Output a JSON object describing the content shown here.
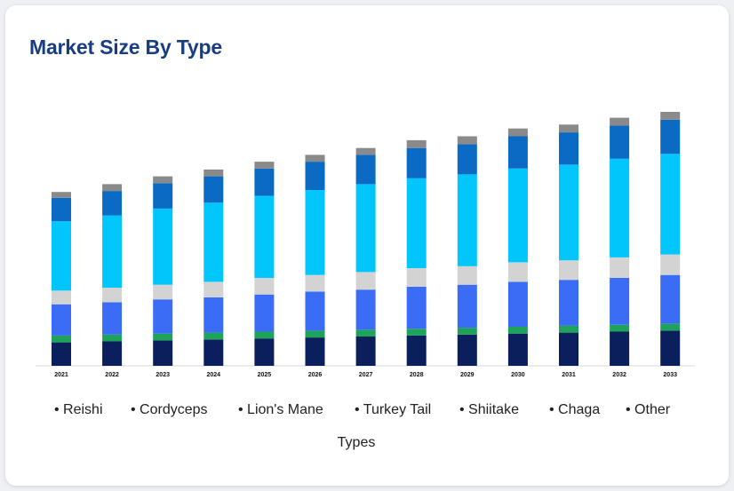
{
  "card": {
    "title": "Market Size By Type"
  },
  "chart_data": {
    "type": "bar",
    "stacked": true,
    "title": "Market Size By Type",
    "xlabel": "Types",
    "ylabel": "",
    "y_axis_labels_shown": false,
    "grid": false,
    "legend_position": "bottom",
    "categories": [
      "2021",
      "2022",
      "2023",
      "2024",
      "2025",
      "2026",
      "2027",
      "2028",
      "2029",
      "2030",
      "2031",
      "2032",
      "2033"
    ],
    "series": [
      {
        "name": "Reishi",
        "color": "#0a1f5c",
        "values": [
          24,
          25,
          26,
          27,
          28,
          29,
          30,
          31,
          32,
          33,
          34,
          35,
          36
        ]
      },
      {
        "name": "Cordyceps",
        "color": "#1ea35a",
        "values": [
          7,
          7,
          7,
          7,
          7,
          7,
          7,
          7,
          7,
          7,
          7,
          7,
          7
        ]
      },
      {
        "name": "Lion's Mane",
        "color": "#3b6cf5",
        "values": [
          32,
          33,
          35,
          36,
          38,
          40,
          41,
          43,
          44,
          46,
          47,
          48,
          50
        ]
      },
      {
        "name": "Turkey Tail",
        "color": "#d3d3d3",
        "values": [
          14,
          15,
          15,
          16,
          17,
          17,
          18,
          19,
          19,
          20,
          20,
          21,
          21
        ]
      },
      {
        "name": "Shiitake",
        "color": "#00c6fb",
        "values": [
          71,
          74,
          78,
          81,
          84,
          87,
          90,
          92,
          94,
          96,
          98,
          101,
          103
        ]
      },
      {
        "name": "Chaga",
        "color": "#0b6bc4",
        "values": [
          24,
          25,
          26,
          27,
          28,
          29,
          30,
          31,
          31,
          33,
          33,
          34,
          35
        ]
      },
      {
        "name": "Other",
        "color": "#8a8a8a",
        "values": [
          6,
          7,
          7,
          7,
          7,
          7,
          7,
          8,
          8,
          8,
          8,
          8,
          8
        ]
      }
    ]
  }
}
